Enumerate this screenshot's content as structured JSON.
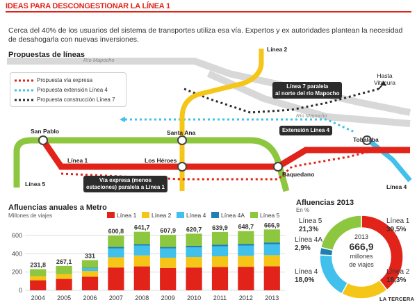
{
  "header": {
    "title": "IDEAS PARA DESCONGESTIONAR LA LÍNEA 1"
  },
  "intro": "Cerca del 40% de los usuarios del sistema de transportes utiliza esa vía. Expertos y ex autoridades plantean la necesidad de desahogarla con nuevas inversiones.",
  "map": {
    "title": "Propuestas de líneas",
    "legend": [
      {
        "label": "Propuesta vía expresa",
        "color": "#e2231a"
      },
      {
        "label": "Propuesta extensión Línea 4",
        "color": "#40c0ea"
      },
      {
        "label": "Propuesta construcción Línea 7",
        "color": "#2c2c2c"
      }
    ],
    "rio_top": "Río Mapocho",
    "rio_mid": "Río Mapocho",
    "linea2": "Línea 2",
    "linea1": "Línea 1",
    "linea5": "Línea 5",
    "linea4": "Línea 4",
    "stations": {
      "san_pablo": "San Pablo",
      "santa_ana": "Santa Ana",
      "los_heroes": "Los Héroes",
      "baquedano": "Baquedano",
      "tobalaba": "Tobalaba",
      "hasta_vitacura_1": "Hasta",
      "hasta_vitacura_2": "Vitacura"
    },
    "callout_l7_1": "Línea 7 paralela",
    "callout_l7_2": "al norte del río Mapocho",
    "callout_ext": "Extensión Línea 4",
    "callout_via_1": "Vía expresa (menos",
    "callout_via_2": "estaciones) paralela a Línea 1",
    "colors": {
      "l1": "#e2231a",
      "l2": "#f5c518",
      "l4": "#40c0ea",
      "l4a": "#1f7fb4",
      "l5": "#8dc63f",
      "gray": "#d0d0d0"
    }
  },
  "afluencias": {
    "title": "Afluencias anuales a Metro",
    "subtitle": "Millones de viajes",
    "legend": [
      {
        "name": "Línea 1",
        "color": "#e2231a"
      },
      {
        "name": "Línea 2",
        "color": "#f5c518"
      },
      {
        "name": "Línea 4",
        "color": "#40c0ea"
      },
      {
        "name": "Línea 4A",
        "color": "#1f7fb4"
      },
      {
        "name": "Línea 5",
        "color": "#8dc63f"
      }
    ]
  },
  "pie": {
    "title": "Afluencias 2013",
    "unit": "En %",
    "center_year": "2013",
    "center_value": "666,9",
    "center_unit_1": "millones",
    "center_unit_2": "de viajes",
    "labels": [
      {
        "name": "Línea 1",
        "pct": "39,5%"
      },
      {
        "name": "Línea 2",
        "pct": "18,3%"
      },
      {
        "name": "Línea 4",
        "pct": "18,0%"
      },
      {
        "name": "Línea 4A",
        "pct": "2,9%"
      },
      {
        "name": "Línea 5",
        "pct": "21,3%"
      }
    ]
  },
  "footer": "LA TERCERA",
  "chart_data": [
    {
      "type": "bar",
      "stacked": true,
      "title": "Afluencias anuales a Metro",
      "ylabel": "Millones de viajes",
      "categories": [
        "2004",
        "2005",
        "2006",
        "2007",
        "2008",
        "2009",
        "2010",
        "2011",
        "2012",
        "2013"
      ],
      "totals": [
        "231,8",
        "267,1",
        "331",
        "600,8",
        "641,7",
        "607,9",
        "620,7",
        "639,9",
        "648,7",
        "666,9"
      ],
      "ylim": [
        0,
        700
      ],
      "yticks": [
        0,
        200,
        400,
        600
      ],
      "series": [
        {
          "name": "Línea 1",
          "color": "#e2231a",
          "values": [
            110,
            125,
            150,
            250,
            262,
            245,
            250,
            255,
            258,
            263
          ]
        },
        {
          "name": "Línea 2",
          "color": "#f5c518",
          "values": [
            45,
            52,
            63,
            112,
            120,
            112,
            115,
            118,
            120,
            122
          ]
        },
        {
          "name": "Línea 4",
          "color": "#40c0ea",
          "values": [
            0,
            0,
            30,
            98,
            108,
            102,
            105,
            110,
            112,
            120
          ]
        },
        {
          "name": "Línea 4A",
          "color": "#1f7fb4",
          "values": [
            0,
            0,
            5,
            16,
            17,
            16,
            17,
            18,
            19,
            19
          ]
        },
        {
          "name": "Línea 5",
          "color": "#8dc63f",
          "values": [
            76.8,
            90.1,
            83,
            124.8,
            134.7,
            132.9,
            133.7,
            138.9,
            139.7,
            142.9
          ]
        }
      ]
    },
    {
      "type": "pie",
      "title": "Afluencias 2013",
      "unit": "En %",
      "slices": [
        {
          "name": "Línea 1",
          "value": 39.5,
          "color": "#e2231a"
        },
        {
          "name": "Línea 2",
          "value": 18.3,
          "color": "#f5c518"
        },
        {
          "name": "Línea 4",
          "value": 18.0,
          "color": "#40c0ea"
        },
        {
          "name": "Línea 4A",
          "value": 2.9,
          "color": "#1f7fb4"
        },
        {
          "name": "Línea 5",
          "value": 21.3,
          "color": "#8dc63f"
        }
      ]
    }
  ]
}
